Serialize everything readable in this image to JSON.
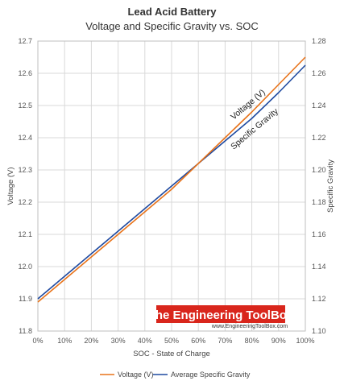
{
  "chart_data": {
    "type": "line",
    "title": "Lead Acid Battery",
    "subtitle": "Voltage and Specific Gravity vs. SOC",
    "xlabel": "SOC - State of Charge",
    "ylabel_left": "Voltage (V)",
    "ylabel_right": "Specific Gravity",
    "x_ticks": [
      "0%",
      "10%",
      "20%",
      "30%",
      "40%",
      "50%",
      "60%",
      "70%",
      "80%",
      "90%",
      "100%"
    ],
    "x": [
      0,
      10,
      20,
      30,
      40,
      50,
      60,
      70,
      80,
      90,
      100
    ],
    "xlim": [
      0,
      100
    ],
    "ylim_left": [
      11.8,
      12.7
    ],
    "ylim_right": [
      1.1,
      1.28
    ],
    "y_ticks_left": [
      "11.8",
      "11.9",
      "12.0",
      "12.1",
      "12.2",
      "12.3",
      "12.4",
      "12.5",
      "12.6",
      "12.7"
    ],
    "y_ticks_right": [
      "1.10",
      "1.12",
      "1.14",
      "1.16",
      "1.18",
      "1.20",
      "1.22",
      "1.24",
      "1.26",
      "1.28"
    ],
    "grid": true,
    "legend_position": "bottom",
    "series": [
      {
        "name": "Voltage (V)",
        "axis": "left",
        "color": "#e8731a",
        "values": [
          11.89,
          11.96,
          12.03,
          12.1,
          12.17,
          12.24,
          12.32,
          12.4,
          12.48,
          12.565,
          12.65
        ]
      },
      {
        "name": "Average Specific Gravity",
        "axis": "right",
        "color": "#1f4aa0",
        "values": [
          1.12,
          1.134,
          1.148,
          1.162,
          1.176,
          1.19,
          1.204,
          1.218,
          1.232,
          1.248,
          1.265
        ]
      }
    ],
    "annotations": {
      "voltage": "Voltage (V)",
      "specific_gravity": "Specific Gravity"
    }
  },
  "watermark": {
    "title": "The Engineering ToolBox",
    "url": "www.EngineeringToolBox.com",
    "color": "#d9261c"
  }
}
